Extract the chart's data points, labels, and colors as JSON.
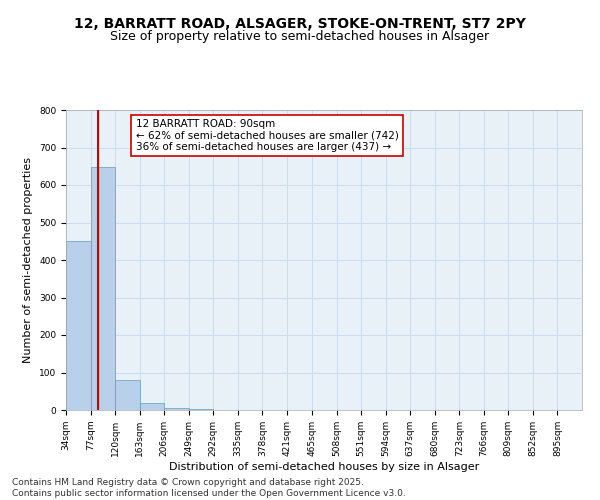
{
  "title_line1": "12, BARRATT ROAD, ALSAGER, STOKE-ON-TRENT, ST7 2PY",
  "title_line2": "Size of property relative to semi-detached houses in Alsager",
  "xlabel": "Distribution of semi-detached houses by size in Alsager",
  "ylabel": "Number of semi-detached properties",
  "bar_left_edges": [
    34,
    77,
    120,
    163,
    206,
    249,
    292,
    335,
    378,
    421,
    465,
    508,
    551,
    594,
    637,
    680,
    723,
    766,
    809,
    852
  ],
  "bar_heights": [
    450,
    648,
    80,
    20,
    5,
    2,
    1,
    1,
    0,
    0,
    0,
    0,
    0,
    0,
    0,
    0,
    0,
    0,
    0,
    0
  ],
  "bin_width": 43,
  "bar_color": "#b8d0ea",
  "bar_edge_color": "#6699bb",
  "property_line_x": 90,
  "property_line_color": "#cc0000",
  "annotation_text": "12 BARRATT ROAD: 90sqm\n← 62% of semi-detached houses are smaller (742)\n36% of semi-detached houses are larger (437) →",
  "annotation_box_color": "#cc0000",
  "annotation_text_color": "#000000",
  "ylim": [
    0,
    800
  ],
  "yticks": [
    0,
    100,
    200,
    300,
    400,
    500,
    600,
    700,
    800
  ],
  "xtick_labels": [
    "34sqm",
    "77sqm",
    "120sqm",
    "163sqm",
    "206sqm",
    "249sqm",
    "292sqm",
    "335sqm",
    "378sqm",
    "421sqm",
    "465sqm",
    "508sqm",
    "551sqm",
    "594sqm",
    "637sqm",
    "680sqm",
    "723sqm",
    "766sqm",
    "809sqm",
    "852sqm",
    "895sqm"
  ],
  "xtick_positions": [
    34,
    77,
    120,
    163,
    206,
    249,
    292,
    335,
    378,
    421,
    465,
    508,
    551,
    594,
    637,
    680,
    723,
    766,
    809,
    852,
    895
  ],
  "grid_color": "#c8ddf0",
  "background_color": "#e8f0f8",
  "footer_text": "Contains HM Land Registry data © Crown copyright and database right 2025.\nContains public sector information licensed under the Open Government Licence v3.0.",
  "title_fontsize": 10,
  "subtitle_fontsize": 9,
  "axis_label_fontsize": 8,
  "tick_fontsize": 6.5,
  "annotation_fontsize": 7.5,
  "footer_fontsize": 6.5
}
